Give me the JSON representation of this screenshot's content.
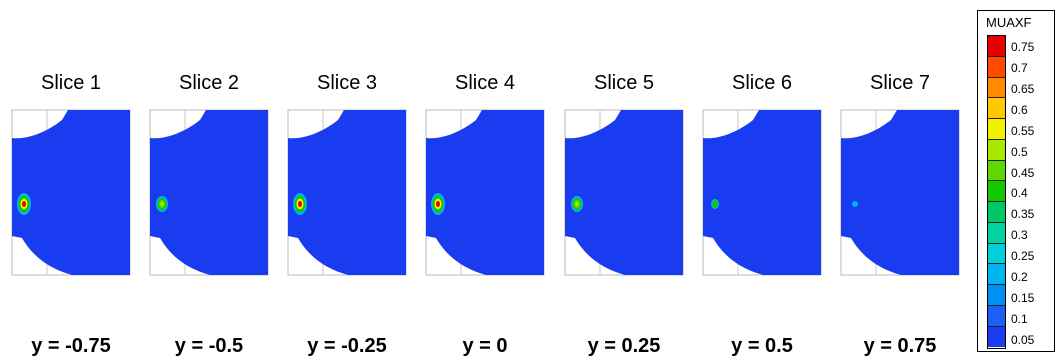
{
  "colors": {
    "background": "#1a3cf0",
    "frame": "#bbbbbb",
    "grid": "#c9c9c9"
  },
  "slices": [
    {
      "title": "Slice 1",
      "caption": "y = -0.75",
      "hotspot": "large"
    },
    {
      "title": "Slice 2",
      "caption": "y = -0.5",
      "hotspot": "medium"
    },
    {
      "title": "Slice 3",
      "caption": "y = -0.25",
      "hotspot": "large"
    },
    {
      "title": "Slice 4",
      "caption": "y = 0",
      "hotspot": "large"
    },
    {
      "title": "Slice 5",
      "caption": "y = 0.25",
      "hotspot": "medium"
    },
    {
      "title": "Slice 6",
      "caption": "y = 0.5",
      "hotspot": "small"
    },
    {
      "title": "Slice 7",
      "caption": "y = 0.75",
      "hotspot": "tiny"
    }
  ],
  "legend": {
    "title": "MUAXF",
    "labels": [
      "0.75",
      "0.7",
      "0.65",
      "0.6",
      "0.55",
      "0.5",
      "0.45",
      "0.4",
      "0.35",
      "0.3",
      "0.25",
      "0.2",
      "0.15",
      "0.1",
      "0.05"
    ],
    "swatch_colors": [
      "#e60000",
      "#ff4a00",
      "#ff8a00",
      "#ffc800",
      "#f0f000",
      "#a8e800",
      "#5ed800",
      "#14c800",
      "#00c864",
      "#00d2a0",
      "#00d0d8",
      "#00b4f0",
      "#0090f5",
      "#1a60f5",
      "#1a3cf0"
    ]
  }
}
